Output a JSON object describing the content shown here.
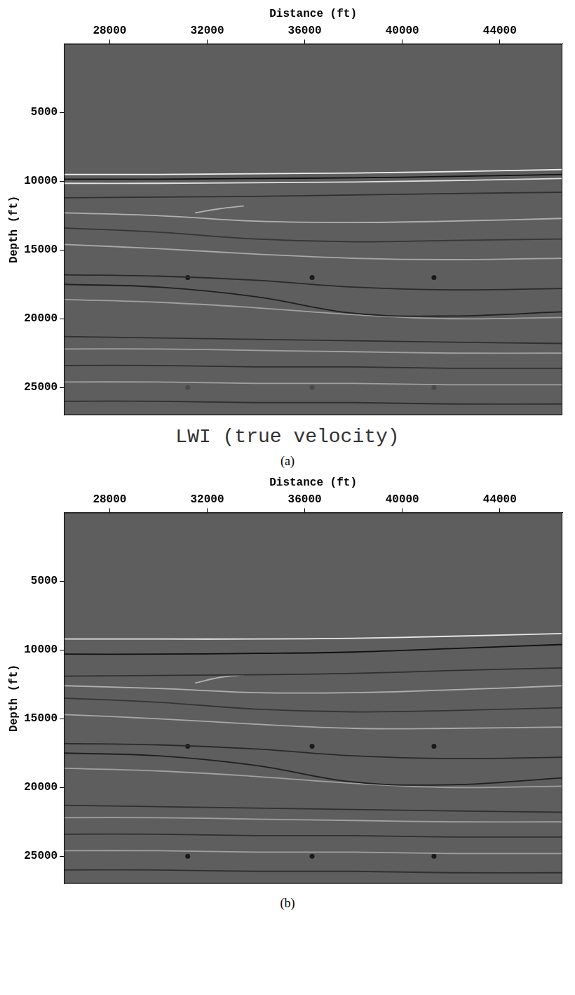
{
  "chart_data": [
    {
      "type": "line",
      "title": "LWI (true velocity)",
      "subtitle": "(a)",
      "x_label": "Distance (ft)",
      "y_label": "Depth (ft)",
      "xlim": [
        26125,
        46565
      ],
      "ylim": [
        0,
        27000
      ],
      "xticks": [
        28000,
        32000,
        36000,
        40000,
        44000
      ],
      "yticks": [
        5000,
        10000,
        15000,
        20000,
        25000
      ],
      "grid": false,
      "series": [
        {
          "color": "#f0f0f0",
          "line_style": "solid",
          "x": [
            26125,
            30000,
            34000,
            38000,
            42000,
            46565
          ],
          "values": [
            9500,
            9500,
            9450,
            9400,
            9300,
            9150
          ]
        },
        {
          "color": "#101010",
          "line_style": "solid",
          "x": [
            26125,
            30000,
            34000,
            38000,
            42000,
            46565
          ],
          "values": [
            9850,
            9850,
            9800,
            9750,
            9650,
            9500
          ]
        },
        {
          "color": "#e0e0e0",
          "line_style": "solid",
          "x": [
            26125,
            30000,
            34000,
            38000,
            42000,
            46565
          ],
          "values": [
            10150,
            10150,
            10100,
            10050,
            9950,
            9800
          ]
        },
        {
          "color": "#303030",
          "line_style": "solid",
          "x": [
            26125,
            30000,
            34000,
            38000,
            42000,
            46565
          ],
          "values": [
            11200,
            11150,
            11100,
            11000,
            10900,
            10800
          ]
        },
        {
          "color": "#b0b0b0",
          "line_style": "solid",
          "x": [
            31500,
            32500,
            33500
          ],
          "values": [
            12300,
            12000,
            11800
          ]
        },
        {
          "color": "#b0b0b0",
          "line_style": "solid",
          "x": [
            26125,
            30000,
            34000,
            38000,
            42000,
            46565
          ],
          "values": [
            12300,
            12500,
            12900,
            13000,
            12900,
            12700
          ]
        },
        {
          "color": "#353535",
          "line_style": "solid",
          "x": [
            26125,
            30000,
            34000,
            38000,
            42000,
            46565
          ],
          "values": [
            13400,
            13700,
            14200,
            14400,
            14300,
            14200
          ]
        },
        {
          "color": "#a8a8a8",
          "line_style": "solid",
          "x": [
            26125,
            30000,
            34000,
            38000,
            42000,
            46565
          ],
          "values": [
            14600,
            14900,
            15300,
            15600,
            15700,
            15600
          ]
        },
        {
          "color": "#2a2a2a",
          "line_style": "solid",
          "x": [
            26125,
            30000,
            34000,
            38000,
            42000,
            46565
          ],
          "values": [
            16800,
            16900,
            17200,
            17700,
            17900,
            17800
          ]
        },
        {
          "color": "#202020",
          "line_style": "solid",
          "x": [
            26125,
            30000,
            34000,
            38000,
            42000,
            46565
          ],
          "values": [
            17500,
            17700,
            18400,
            19600,
            19800,
            19500
          ]
        },
        {
          "color": "#a0a0a0",
          "line_style": "solid",
          "x": [
            26125,
            30000,
            34000,
            38000,
            42000,
            46565
          ],
          "values": [
            18600,
            18800,
            19200,
            19700,
            20000,
            19900
          ]
        },
        {
          "color": "#303030",
          "line_style": "solid",
          "x": [
            26125,
            30000,
            34000,
            38000,
            42000,
            46565
          ],
          "values": [
            21300,
            21400,
            21500,
            21600,
            21700,
            21800
          ]
        },
        {
          "color": "#a0a0a0",
          "line_style": "solid",
          "x": [
            26125,
            30000,
            34000,
            38000,
            42000,
            46565
          ],
          "values": [
            22200,
            22200,
            22300,
            22400,
            22500,
            22500
          ]
        },
        {
          "color": "#303030",
          "line_style": "solid",
          "x": [
            26125,
            30000,
            34000,
            38000,
            42000,
            46565
          ],
          "values": [
            23400,
            23400,
            23500,
            23500,
            23600,
            23600
          ]
        },
        {
          "color": "#a0a0a0",
          "line_style": "solid",
          "x": [
            26125,
            30000,
            34000,
            38000,
            42000,
            46565
          ],
          "values": [
            24600,
            24600,
            24700,
            24700,
            24800,
            24800
          ]
        },
        {
          "color": "#303030",
          "line_style": "solid",
          "x": [
            26125,
            30000,
            34000,
            38000,
            42000,
            46565
          ],
          "values": [
            26000,
            26000,
            26100,
            26100,
            26200,
            26200
          ]
        },
        {
          "type": "scatter",
          "marker": "circle",
          "color": "#1a1a1a",
          "x": [
            31200,
            36300,
            41300
          ],
          "values": [
            17000,
            17000,
            17000
          ]
        },
        {
          "type": "scatter",
          "marker": "circle",
          "color": "#4a4a4a",
          "x": [
            31200,
            36300,
            41300
          ],
          "values": [
            25000,
            25000,
            25000
          ]
        }
      ]
    },
    {
      "type": "line",
      "subtitle": "(b)",
      "x_label": "Distance (ft)",
      "y_label": "Depth (ft)",
      "xlim": [
        26125,
        46565
      ],
      "ylim": [
        0,
        27000
      ],
      "xticks": [
        28000,
        32000,
        36000,
        40000,
        44000
      ],
      "yticks": [
        5000,
        10000,
        15000,
        20000,
        25000
      ],
      "grid": false,
      "series": [
        {
          "color": "#e8e8e8",
          "line_style": "solid",
          "x": [
            26125,
            30000,
            34000,
            38000,
            42000,
            46565
          ],
          "values": [
            9200,
            9200,
            9200,
            9150,
            9000,
            8800
          ]
        },
        {
          "color": "#101010",
          "line_style": "solid",
          "x": [
            26125,
            30000,
            34000,
            38000,
            42000,
            46565
          ],
          "values": [
            10300,
            10300,
            10250,
            10150,
            9900,
            9600
          ]
        },
        {
          "color": "#303030",
          "line_style": "solid",
          "x": [
            26125,
            30000,
            34000,
            38000,
            42000,
            46565
          ],
          "values": [
            11900,
            11850,
            11800,
            11700,
            11500,
            11300
          ]
        },
        {
          "color": "#b0b0b0",
          "line_style": "solid",
          "x": [
            31500,
            32500,
            33500
          ],
          "values": [
            12400,
            12000,
            11800
          ]
        },
        {
          "color": "#b0b0b0",
          "line_style": "solid",
          "x": [
            26125,
            30000,
            34000,
            38000,
            42000,
            46565
          ],
          "values": [
            12600,
            12800,
            13100,
            13100,
            12900,
            12600
          ]
        },
        {
          "color": "#353535",
          "line_style": "solid",
          "x": [
            26125,
            30000,
            34000,
            38000,
            42000,
            46565
          ],
          "values": [
            13500,
            13800,
            14300,
            14500,
            14400,
            14200
          ]
        },
        {
          "color": "#a8a8a8",
          "line_style": "solid",
          "x": [
            26125,
            30000,
            34000,
            38000,
            42000,
            46565
          ],
          "values": [
            14700,
            15000,
            15400,
            15700,
            15700,
            15600
          ]
        },
        {
          "color": "#2a2a2a",
          "line_style": "solid",
          "x": [
            26125,
            30000,
            34000,
            38000,
            42000,
            46565
          ],
          "values": [
            16800,
            16900,
            17200,
            17700,
            17900,
            17800
          ]
        },
        {
          "color": "#202020",
          "line_style": "solid",
          "x": [
            26125,
            30000,
            34000,
            38000,
            42000,
            46565
          ],
          "values": [
            17500,
            17700,
            18400,
            19600,
            19800,
            19300
          ]
        },
        {
          "color": "#a0a0a0",
          "line_style": "solid",
          "x": [
            26125,
            30000,
            34000,
            38000,
            42000,
            46565
          ],
          "values": [
            18600,
            18800,
            19200,
            19700,
            20000,
            19900
          ]
        },
        {
          "color": "#303030",
          "line_style": "solid",
          "x": [
            26125,
            30000,
            34000,
            38000,
            42000,
            46565
          ],
          "values": [
            21300,
            21400,
            21500,
            21600,
            21700,
            21800
          ]
        },
        {
          "color": "#a0a0a0",
          "line_style": "solid",
          "x": [
            26125,
            30000,
            34000,
            38000,
            42000,
            46565
          ],
          "values": [
            22200,
            22200,
            22300,
            22400,
            22500,
            22500
          ]
        },
        {
          "color": "#303030",
          "line_style": "solid",
          "x": [
            26125,
            30000,
            34000,
            38000,
            42000,
            46565
          ],
          "values": [
            23400,
            23400,
            23500,
            23500,
            23600,
            23600
          ]
        },
        {
          "color": "#a0a0a0",
          "line_style": "solid",
          "x": [
            26125,
            30000,
            34000,
            38000,
            42000,
            46565
          ],
          "values": [
            24600,
            24600,
            24700,
            24700,
            24800,
            24800
          ]
        },
        {
          "color": "#303030",
          "line_style": "solid",
          "x": [
            26125,
            30000,
            34000,
            38000,
            42000,
            46565
          ],
          "values": [
            26000,
            26000,
            26100,
            26100,
            26200,
            26200
          ]
        },
        {
          "type": "scatter",
          "marker": "circle",
          "color": "#1a1a1a",
          "x": [
            31200,
            36300,
            41300
          ],
          "values": [
            17000,
            17000,
            17000
          ]
        },
        {
          "type": "scatter",
          "marker": "circle",
          "color": "#1a1a1a",
          "x": [
            31200,
            36300,
            41300
          ],
          "values": [
            25000,
            25000,
            25000
          ]
        }
      ]
    }
  ]
}
